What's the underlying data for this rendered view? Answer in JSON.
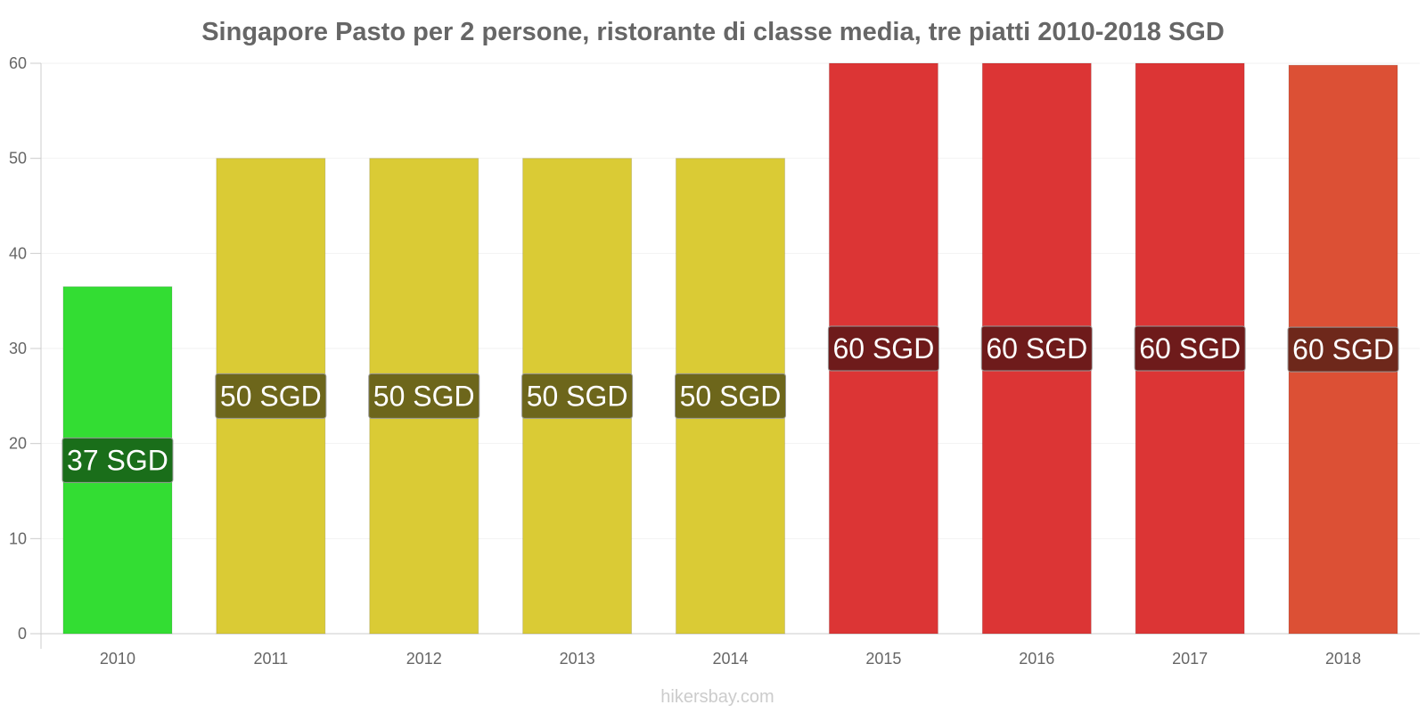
{
  "chart_data": {
    "type": "bar",
    "title": "Singapore Pasto per 2 persone, ristorante di classe media, tre piatti 2010-2018 SGD",
    "categories": [
      "2010",
      "2011",
      "2012",
      "2013",
      "2014",
      "2015",
      "2016",
      "2017",
      "2018"
    ],
    "values": [
      36.5,
      50,
      50,
      50,
      50,
      60,
      60,
      60,
      59.8
    ],
    "data_labels": [
      "37 SGD",
      "50 SGD",
      "50 SGD",
      "50 SGD",
      "50 SGD",
      "60 SGD",
      "60 SGD",
      "60 SGD",
      "60 SGD"
    ],
    "bar_colors": [
      "#33dd33",
      "#dacb35",
      "#dacb35",
      "#dacb35",
      "#dacb35",
      "#dc3535",
      "#dc3535",
      "#dc3535",
      "#dc5035"
    ],
    "label_bg_colors": [
      "#1a6e1a",
      "#6d661b",
      "#6d661b",
      "#6d661b",
      "#6d661b",
      "#6e1b1b",
      "#6e1b1b",
      "#6e1b1b",
      "#6e281b"
    ],
    "yticks": [
      0,
      10,
      20,
      30,
      40,
      50,
      60
    ],
    "ylim": [
      0,
      60
    ],
    "xlabel": "",
    "ylabel": "",
    "credit": "hikersbay.com"
  }
}
